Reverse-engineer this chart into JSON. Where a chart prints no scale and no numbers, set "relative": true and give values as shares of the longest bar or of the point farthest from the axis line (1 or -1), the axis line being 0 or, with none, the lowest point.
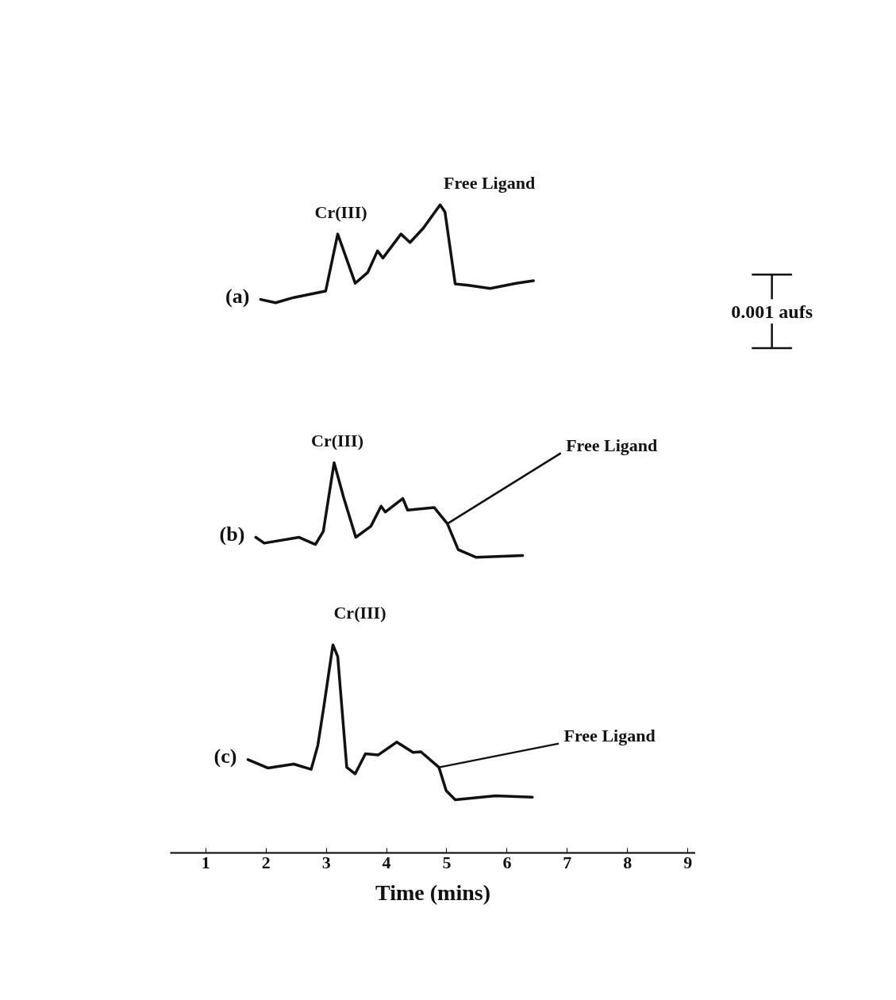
{
  "chart_data": {
    "type": "line",
    "relative": true,
    "xlabel": "Time (mins)",
    "xlim": [
      0.41,
      9.13
    ],
    "xticks": [
      1,
      2,
      3,
      4,
      5,
      6,
      7,
      8,
      9
    ],
    "grid": false,
    "line_style": "solid",
    "marker": "none",
    "series": [
      {
        "name": "(a)",
        "color": "#111111",
        "x": [
          1.91,
          2.16,
          2.46,
          2.99,
          3.19,
          3.48,
          3.69,
          3.85,
          3.94,
          4.24,
          4.39,
          4.61,
          4.89,
          4.97,
          5.14,
          5.36,
          5.72,
          6.15,
          6.44
        ],
        "values": [
          0.854,
          0.849,
          0.857,
          0.867,
          0.955,
          0.879,
          0.896,
          0.929,
          0.918,
          0.955,
          0.942,
          0.964,
          1,
          0.989,
          0.878,
          0.876,
          0.871,
          0.879,
          0.883
        ]
      },
      {
        "name": "(b)",
        "color": "#111111",
        "x": [
          1.83,
          1.97,
          2.55,
          2.82,
          2.95,
          3.13,
          3.29,
          3.49,
          3.74,
          3.91,
          3.98,
          4.27,
          4.35,
          4.79,
          5.01,
          5.19,
          5.49,
          6.26
        ],
        "values": [
          0.487,
          0.478,
          0.487,
          0.476,
          0.496,
          0.602,
          0.548,
          0.487,
          0.504,
          0.535,
          0.526,
          0.547,
          0.529,
          0.533,
          0.508,
          0.468,
          0.456,
          0.459
        ]
      },
      {
        "name": "(c)",
        "color": "#111111",
        "x": [
          1.7,
          2.03,
          2.46,
          2.75,
          2.86,
          2.96,
          3.11,
          3.19,
          3.34,
          3.48,
          3.65,
          3.86,
          4.17,
          4.44,
          4.57,
          4.87,
          4.99,
          5.14,
          5.81,
          6.42
        ],
        "values": [
          0.144,
          0.131,
          0.137,
          0.129,
          0.166,
          0.226,
          0.321,
          0.303,
          0.132,
          0.122,
          0.153,
          0.151,
          0.171,
          0.155,
          0.156,
          0.132,
          0.096,
          0.082,
          0.088,
          0.086
        ]
      }
    ],
    "annotations": [
      {
        "text": "Cr(III)",
        "x": 3.19,
        "y": 0.955
      },
      {
        "text": "Free Ligand",
        "x": 4.89,
        "y": 1
      },
      {
        "text": "Cr(III)",
        "x": 3.13,
        "y": 0.602
      },
      {
        "text": "Free Ligand",
        "x": 5.01,
        "y": 0.508
      },
      {
        "text": "Cr(III)",
        "x": 3.11,
        "y": 0.321
      },
      {
        "text": "Free Ligand",
        "x": 4.87,
        "y": 0.132
      },
      "0.001 aufs"
    ]
  }
}
